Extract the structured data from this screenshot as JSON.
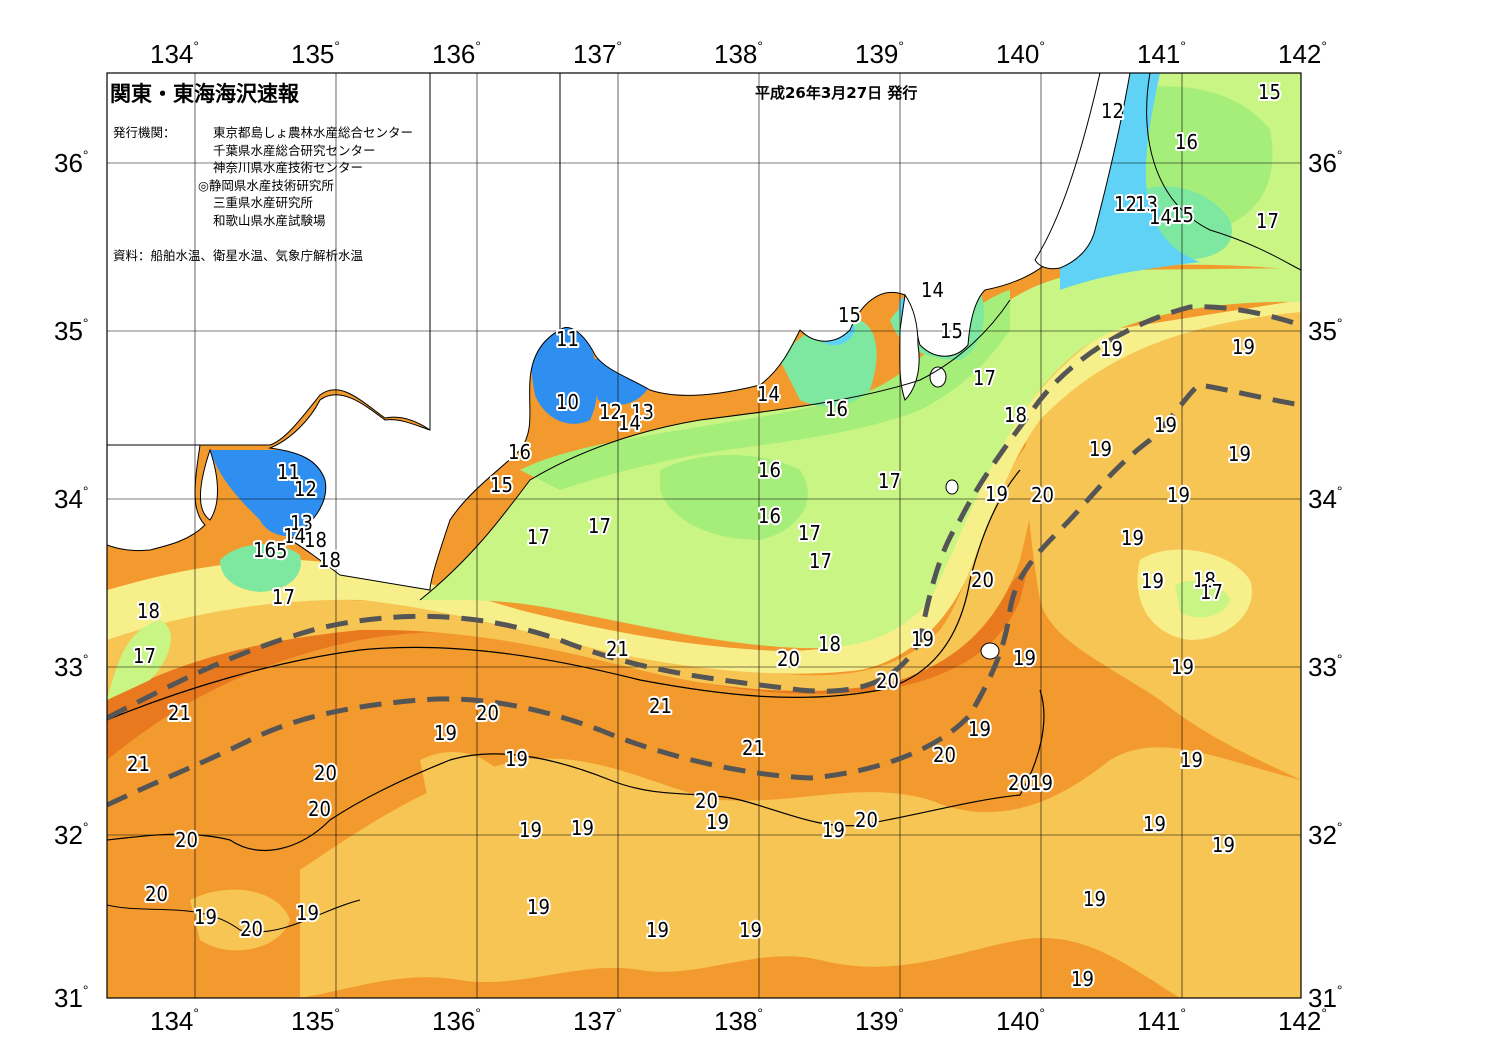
{
  "title": "関東・東海海沢速報",
  "issue_date": "平成26年3月27日 発行",
  "publisher_heading": "発行機関：",
  "institutions": [
    "東京都島しょ農林水産総合センター",
    "千葉県水産総合研究センター",
    "神奈川県水産技術センター",
    "◎静岡県水産技術研究所",
    "三重県水産研究所",
    "和歌山県水産試験場"
  ],
  "source": "資料：船舶水温、衛星水温、気象庁解析水温",
  "axes": {
    "longitudes": [
      "134",
      "135",
      "136",
      "137",
      "138",
      "139",
      "140",
      "141",
      "142"
    ],
    "latitudes": [
      "36",
      "35",
      "34",
      "33",
      "32",
      "31"
    ],
    "degree_symbol": "°"
  },
  "colors": {
    "t10_11": "#2f8ff0",
    "t12_13": "#5fd2f5",
    "t14_15": "#7ee8a0",
    "t16": "#a6ee7a",
    "t17": "#c8f584",
    "t18": "#f6ef8a",
    "t19": "#f7c553",
    "t20": "#f29a2e",
    "t21": "#e8791e",
    "land": "#ffffff",
    "kuroshio_axis": "#555555"
  },
  "isotherm_labels": {
    "a1": "15",
    "a2": "12",
    "a3": "16",
    "a4": "17",
    "a5": "12",
    "a6": "13",
    "a7": "14",
    "a8": "15",
    "b1": "14",
    "b2": "15",
    "b3": "15",
    "b4": "17",
    "b5": "19",
    "b6": "19",
    "b7": "18",
    "c1": "11",
    "c2": "10",
    "c3": "12",
    "c4": "13",
    "c5": "14",
    "c6": "14",
    "c7": "16",
    "c8": "16",
    "c9": "15",
    "c10": "16",
    "c11": "17",
    "c12": "16",
    "c13": "17",
    "c14": "17",
    "d1": "11",
    "d2": "12",
    "d3": "13",
    "d4": "14",
    "d5": "18",
    "d6": "16",
    "d7": "5",
    "d8": "18",
    "d9": "17",
    "d10": "18",
    "d11": "17",
    "e1": "17",
    "e2": "17",
    "e3": "19",
    "e4": "20",
    "e5": "19",
    "e6": "19",
    "e7": "19",
    "e8": "19",
    "e9": "18",
    "e10": "17",
    "e11": "19",
    "f1": "19",
    "f2": "18",
    "f3": "19",
    "f4": "20",
    "f5": "20",
    "f6": "19",
    "f7": "19",
    "g1": "21",
    "g2": "21",
    "g3": "20",
    "g4": "19",
    "g5": "21",
    "g6": "21",
    "g7": "20",
    "g8": "21",
    "g9": "19",
    "g10": "20",
    "g11": "20",
    "g12": "19",
    "h1": "20",
    "h2": "20",
    "h3": "19",
    "h4": "19",
    "h5": "20",
    "h6": "19",
    "h7": "19",
    "h8": "20",
    "h9": "20",
    "h10": "19",
    "h11": "19",
    "i1": "20",
    "i2": "19",
    "i3": "20",
    "i4": "19",
    "i5": "19",
    "i6": "19",
    "i7": "19",
    "i8": "19",
    "i9": "19",
    "i10": "19",
    "i11": "19"
  }
}
